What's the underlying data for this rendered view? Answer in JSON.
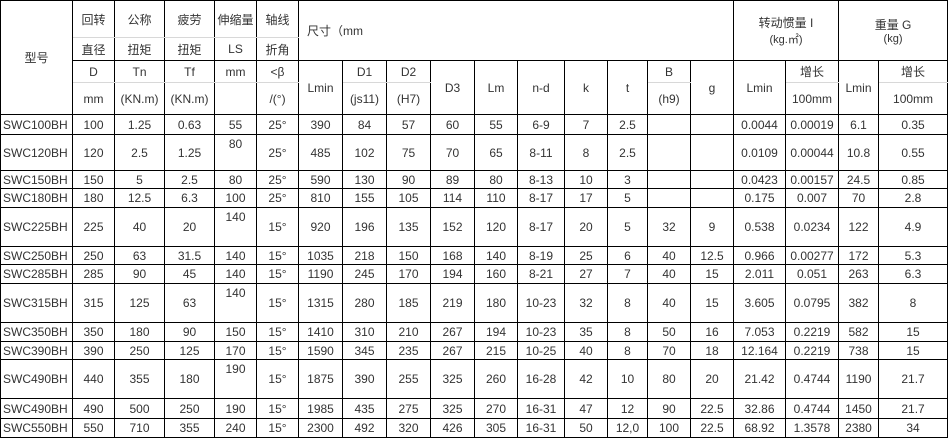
{
  "header": {
    "model": "型号",
    "col_d": [
      "回转",
      "直径",
      "D",
      "mm"
    ],
    "col_tn": [
      "公称",
      "扭矩",
      "Tn",
      "(KN.m)"
    ],
    "col_tf": [
      "疲劳",
      "扭矩",
      "Tf",
      "(KN.m)"
    ],
    "col_ls": [
      "伸缩量",
      "LS",
      "mm",
      ""
    ],
    "col_beta": [
      "轴线",
      "折角",
      "<β",
      "/(°)"
    ],
    "dimensions": "尺寸（mm",
    "inertia": [
      "转动惯量 I",
      "(kg.㎡)"
    ],
    "weight": [
      "重量 G",
      "(kg)"
    ],
    "lmin": "Lmin",
    "d1": [
      "D1",
      "(js11)"
    ],
    "d2": [
      "D2",
      "(H7)"
    ],
    "d3": "D3",
    "lm": "Lm",
    "nd": "n-d",
    "k": "k",
    "t": "t",
    "b": [
      "B",
      "(h9)"
    ],
    "g": "g",
    "inertia_lmin": "Lmin",
    "inertia_inc": [
      "增长",
      "100mm"
    ],
    "weight_lmin": "Lmin",
    "weight_inc": [
      "增长",
      "100mm"
    ]
  },
  "rows": [
    [
      "SWC100BH",
      "100",
      "1.25",
      "0.63",
      "55",
      "25°",
      "390",
      "84",
      "57",
      "60",
      "55",
      "6-9",
      "7",
      "2.5",
      "",
      "",
      "0.0044",
      "0.00019",
      "6.1",
      "0.35"
    ],
    [
      "SWC120BH",
      "120",
      "2.5",
      "1.25",
      "80",
      "25°",
      "485",
      "102",
      "75",
      "70",
      "65",
      "8-11",
      "8",
      "2.5",
      "",
      "",
      "0.0109",
      "0.00044",
      "10.8",
      "0.55"
    ],
    [
      "SWC150BH",
      "150",
      "5",
      "2.5",
      "80",
      "25°",
      "590",
      "130",
      "90",
      "89",
      "80",
      "8-13",
      "10",
      "3",
      "",
      "",
      "0.0423",
      "0.00157",
      "24.5",
      "0.85"
    ],
    [
      "SWC180BH",
      "180",
      "12.5",
      "6.3",
      "100",
      "25°",
      "810",
      "155",
      "105",
      "114",
      "110",
      "8-17",
      "17",
      "5",
      "",
      "",
      "0.175",
      "0.007",
      "70",
      "2.8"
    ],
    [
      "SWC225BH",
      "225",
      "40",
      "20",
      "140",
      "15°",
      "920",
      "196",
      "135",
      "152",
      "120",
      "8-17",
      "20",
      "5",
      "32",
      "9",
      "0.538",
      "0.0234",
      "122",
      "4.9"
    ],
    [
      "SWC250BH",
      "250",
      "63",
      "31.5",
      "140",
      "15°",
      "1035",
      "218",
      "150",
      "168",
      "140",
      "8-19",
      "25",
      "6",
      "40",
      "12.5",
      "0.966",
      "0.00277",
      "172",
      "5.3"
    ],
    [
      "SWC285BH",
      "285",
      "90",
      "45",
      "140",
      "15°",
      "1190",
      "245",
      "170",
      "194",
      "160",
      "8-21",
      "27",
      "7",
      "40",
      "15",
      "2.011",
      "0.051",
      "263",
      "6.3"
    ],
    [
      "SWC315BH",
      "315",
      "125",
      "63",
      "140",
      "15°",
      "1315",
      "280",
      "185",
      "219",
      "180",
      "10-23",
      "32",
      "8",
      "40",
      "15",
      "3.605",
      "0.0795",
      "382",
      "8"
    ],
    [
      "SWC350BH",
      "350",
      "180",
      "90",
      "150",
      "15°",
      "1410",
      "310",
      "210",
      "267",
      "194",
      "10-23",
      "35",
      "8",
      "50",
      "16",
      "7.053",
      "0.2219",
      "582",
      "15"
    ],
    [
      "SWC390BH",
      "390",
      "250",
      "125",
      "170",
      "15°",
      "1590",
      "345",
      "235",
      "267",
      "215",
      "10-25",
      "40",
      "8",
      "70",
      "18",
      "12.164",
      "0.2219",
      "738",
      "15"
    ],
    [
      "SWC490BH",
      "440",
      "355",
      "180",
      "190",
      "15°",
      "1875",
      "390",
      "255",
      "325",
      "260",
      "16-28",
      "42",
      "10",
      "80",
      "20",
      "21.42",
      "0.4744",
      "1190",
      "21.7"
    ],
    [
      "SWC490BH",
      "490",
      "500",
      "250",
      "190",
      "15°",
      "1985",
      "435",
      "275",
      "325",
      "270",
      "16-31",
      "47",
      "12",
      "90",
      "22.5",
      "32.86",
      "0.4744",
      "1450",
      "21.7"
    ],
    [
      "SWC550BH",
      "550",
      "710",
      "355",
      "240",
      "15°",
      "2300",
      "492",
      "320",
      "426",
      "305",
      "16-31",
      "50",
      "12,0",
      "100",
      "22.5",
      "68.92",
      "1.3578",
      "2380",
      "34"
    ]
  ]
}
